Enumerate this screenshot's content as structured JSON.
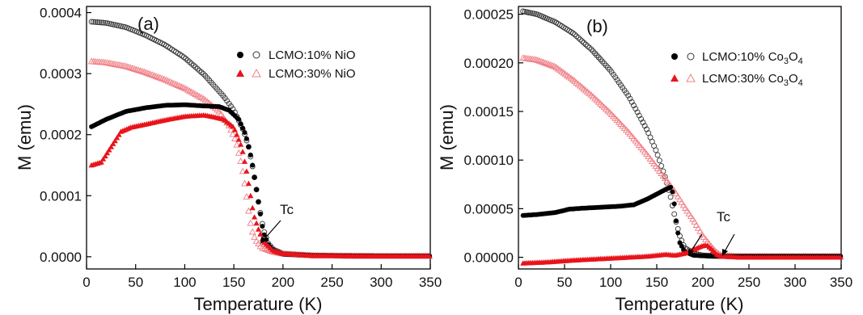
{
  "chart_data": [
    {
      "type": "scatter",
      "panel_label": "(a)",
      "xlabel": "Temperature (K)",
      "ylabel": "M (emu)",
      "xlim": [
        0,
        350
      ],
      "ylim": [
        -2e-05,
        0.00041
      ],
      "x_ticks": [
        "0",
        "50",
        "100",
        "150",
        "200",
        "250",
        "300",
        "350"
      ],
      "y_ticks": [
        "0.0000",
        "0.0001",
        "0.0002",
        "0.0003",
        "0.0004"
      ],
      "legend_position": "top-right",
      "annotation": "Tc",
      "series": [
        {
          "name": "LCMO:10% NiO",
          "marker": "circle",
          "color": "#000000",
          "fill": "filled",
          "mode": "ZFC",
          "points": [
            [
              5,
              0.000213
            ],
            [
              20,
              0.000225
            ],
            [
              40,
              0.000238
            ],
            [
              60,
              0.000244
            ],
            [
              80,
              0.000248
            ],
            [
              100,
              0.000249
            ],
            [
              120,
              0.000247
            ],
            [
              135,
              0.000246
            ],
            [
              145,
              0.00024
            ],
            [
              155,
              0.000225
            ],
            [
              162,
              0.0002
            ],
            [
              168,
              0.00016
            ],
            [
              172,
              0.00012
            ],
            [
              176,
              8e-05
            ],
            [
              180,
              4e-05
            ],
            [
              185,
              2e-05
            ],
            [
              190,
              1e-05
            ],
            [
              200,
              4e-06
            ],
            [
              230,
              2e-06
            ],
            [
              260,
              1.5e-06
            ],
            [
              300,
              1e-06
            ],
            [
              350,
              1e-06
            ]
          ]
        },
        {
          "name": "LCMO:10% NiO",
          "marker": "circle",
          "color": "#333333",
          "fill": "open",
          "mode": "FC",
          "points": [
            [
              5,
              0.000385
            ],
            [
              20,
              0.000383
            ],
            [
              40,
              0.000376
            ],
            [
              60,
              0.000363
            ],
            [
              80,
              0.000347
            ],
            [
              100,
              0.000326
            ],
            [
              120,
              0.000298
            ],
            [
              140,
              0.000262
            ],
            [
              150,
              0.00024
            ],
            [
              160,
              0.000206
            ],
            [
              165,
              0.00018
            ],
            [
              170,
              0.00014
            ],
            [
              175,
              9e-05
            ],
            [
              180,
              4.5e-05
            ],
            [
              185,
              2.2e-05
            ],
            [
              190,
              1.2e-05
            ],
            [
              200,
              5e-06
            ],
            [
              230,
              2e-06
            ],
            [
              260,
              1.5e-06
            ],
            [
              300,
              1e-06
            ],
            [
              350,
              1e-06
            ]
          ]
        },
        {
          "name": "LCMO:30% NiO",
          "marker": "triangle",
          "color": "#e8141b",
          "fill": "filled",
          "mode": "ZFC",
          "points": [
            [
              5,
              0.00015
            ],
            [
              15,
              0.000155
            ],
            [
              25,
              0.00018
            ],
            [
              35,
              0.000205
            ],
            [
              45,
              0.000212
            ],
            [
              60,
              0.000217
            ],
            [
              80,
              0.000224
            ],
            [
              100,
              0.00023
            ],
            [
              120,
              0.000232
            ],
            [
              130,
              0.000229
            ],
            [
              140,
              0.000225
            ],
            [
              150,
              0.000212
            ],
            [
              158,
              0.00018
            ],
            [
              163,
              0.00014
            ],
            [
              166,
              0.00011
            ],
            [
              170,
              7e-05
            ],
            [
              175,
              4.5e-05
            ],
            [
              180,
              2.5e-05
            ],
            [
              190,
              1e-05
            ],
            [
              200,
              5e-06
            ],
            [
              230,
              2e-06
            ],
            [
              260,
              1.5e-06
            ],
            [
              300,
              1e-06
            ],
            [
              350,
              1e-06
            ]
          ]
        },
        {
          "name": "LCMO:30% NiO",
          "marker": "triangle",
          "color": "#f07f86",
          "fill": "open",
          "mode": "FC",
          "points": [
            [
              5,
              0.00032
            ],
            [
              20,
              0.000318
            ],
            [
              40,
              0.000312
            ],
            [
              60,
              0.000302
            ],
            [
              80,
              0.00029
            ],
            [
              100,
              0.000276
            ],
            [
              120,
              0.000258
            ],
            [
              135,
              0.000238
            ],
            [
              145,
              0.000215
            ],
            [
              152,
              0.00019
            ],
            [
              158,
              0.00015
            ],
            [
              162,
              0.00011
            ],
            [
              165,
              7.5e-05
            ],
            [
              168,
              4.5e-05
            ],
            [
              172,
              2.8e-05
            ],
            [
              178,
              1.5e-05
            ],
            [
              190,
              8e-06
            ],
            [
              200,
              5e-06
            ],
            [
              230,
              2e-06
            ],
            [
              260,
              1.5e-06
            ],
            [
              300,
              1e-06
            ],
            [
              350,
              1e-06
            ]
          ]
        }
      ]
    },
    {
      "type": "scatter",
      "panel_label": "(b)",
      "xlabel": "Temperature (K)",
      "ylabel": "M (emu)",
      "xlim": [
        0,
        350
      ],
      "ylim": [
        -1.2e-05,
        0.000258
      ],
      "x_ticks": [
        "0",
        "50",
        "100",
        "150",
        "200",
        "250",
        "300",
        "350"
      ],
      "y_ticks": [
        "0.00000",
        "0.00005",
        "0.00010",
        "0.00015",
        "0.00020",
        "0.00025"
      ],
      "legend_position": "top-right",
      "annotation": "Tc",
      "series": [
        {
          "name": "LCMO:10% Co3O4",
          "marker": "circle",
          "color": "#000000",
          "fill": "filled",
          "mode": "ZFC",
          "points": [
            [
              5,
              4.3e-05
            ],
            [
              20,
              4.4e-05
            ],
            [
              40,
              4.6e-05
            ],
            [
              55,
              4.95e-05
            ],
            [
              70,
              5.05e-05
            ],
            [
              90,
              5.15e-05
            ],
            [
              110,
              5.25e-05
            ],
            [
              125,
              5.4e-05
            ],
            [
              140,
              6e-05
            ],
            [
              150,
              6.5e-05
            ],
            [
              160,
              7e-05
            ],
            [
              165,
              7.2e-05
            ],
            [
              168,
              6.5e-05
            ],
            [
              170,
              4.5e-05
            ],
            [
              172,
              3e-05
            ],
            [
              175,
              1.5e-05
            ],
            [
              180,
              6e-06
            ],
            [
              190,
              2e-06
            ],
            [
              210,
              1e-06
            ],
            [
              260,
              1e-06
            ],
            [
              300,
              1e-06
            ],
            [
              350,
              1e-06
            ]
          ]
        },
        {
          "name": "LCMO:10% Co3O4",
          "marker": "circle",
          "color": "#333333",
          "fill": "open",
          "mode": "FC",
          "points": [
            [
              5,
              0.000253
            ],
            [
              20,
              0.00025
            ],
            [
              40,
              0.000242
            ],
            [
              60,
              0.00023
            ],
            [
              80,
              0.000213
            ],
            [
              100,
              0.000192
            ],
            [
              120,
              0.000165
            ],
            [
              140,
              0.00013
            ],
            [
              150,
              0.000108
            ],
            [
              160,
              8e-05
            ],
            [
              165,
              6.2e-05
            ],
            [
              170,
              4e-05
            ],
            [
              175,
              2.2e-05
            ],
            [
              180,
              1e-05
            ],
            [
              190,
              4e-06
            ],
            [
              200,
              2e-06
            ],
            [
              230,
              1e-06
            ],
            [
              260,
              1e-06
            ],
            [
              300,
              1e-06
            ],
            [
              350,
              1e-06
            ]
          ]
        },
        {
          "name": "LCMO:30% Co3O4",
          "marker": "triangle",
          "color": "#e8141b",
          "fill": "filled",
          "mode": "ZFC",
          "points": [
            [
              5,
              -6e-06
            ],
            [
              30,
              -5e-06
            ],
            [
              60,
              -3e-06
            ],
            [
              100,
              -1e-06
            ],
            [
              140,
              1e-06
            ],
            [
              160,
              3e-06
            ],
            [
              170,
              2e-06
            ],
            [
              180,
              4e-06
            ],
            [
              190,
              8e-06
            ],
            [
              200,
              1.2e-05
            ],
            [
              205,
              1.2e-05
            ],
            [
              210,
              8e-06
            ],
            [
              215,
              3e-06
            ],
            [
              220,
              1e-06
            ],
            [
              240,
              0.0
            ],
            [
              270,
              0.0
            ],
            [
              300,
              0.0
            ],
            [
              350,
              0.0
            ]
          ]
        },
        {
          "name": "LCMO:30% Co3O4",
          "marker": "triangle",
          "color": "#f07f86",
          "fill": "open",
          "mode": "FC",
          "points": [
            [
              5,
              0.000205
            ],
            [
              20,
              0.000203
            ],
            [
              40,
              0.000196
            ],
            [
              60,
              0.000182
            ],
            [
              80,
              0.000166
            ],
            [
              100,
              0.000148
            ],
            [
              120,
              0.000128
            ],
            [
              140,
              0.000105
            ],
            [
              160,
              8e-05
            ],
            [
              170,
              6.7e-05
            ],
            [
              180,
              5.2e-05
            ],
            [
              190,
              3.8e-05
            ],
            [
              200,
              2.2e-05
            ],
            [
              210,
              1e-05
            ],
            [
              215,
              5e-06
            ],
            [
              220,
              2e-06
            ],
            [
              240,
              1e-06
            ],
            [
              270,
              1e-06
            ],
            [
              300,
              1e-06
            ],
            [
              350,
              1e-06
            ]
          ]
        }
      ]
    }
  ],
  "legends": {
    "a": [
      {
        "prefix": "LCMO:10% NiO",
        "sub": "",
        "suffix": ""
      },
      {
        "prefix": "LCMO:30% NiO",
        "sub": "",
        "suffix": ""
      }
    ],
    "b": [
      {
        "prefix": "LCMO:10% Co",
        "sub1": "3",
        "mid": "O",
        "sub2": "4"
      },
      {
        "prefix": "LCMO:30% Co",
        "sub1": "3",
        "mid": "O",
        "sub2": "4"
      }
    ]
  },
  "colors": {
    "black_filled": "#000000",
    "grey_open": "#333333",
    "red_filled": "#e8141b",
    "pink_open": "#f07f86"
  }
}
